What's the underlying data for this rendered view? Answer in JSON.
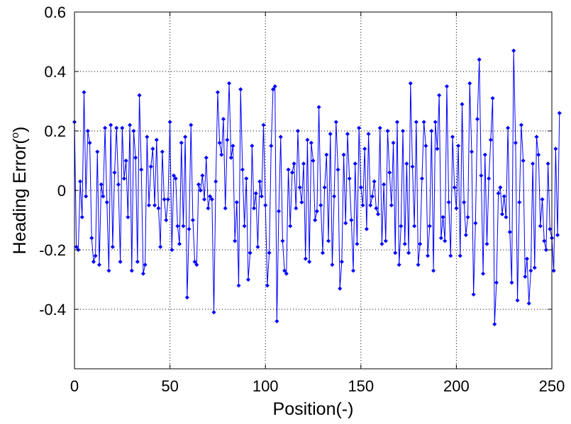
{
  "chart_data": {
    "type": "line",
    "xlabel": "Position(-)",
    "ylabel_text": "Heading Error(",
    "ylabel_sup": "o",
    "ylabel_close": ")",
    "xlim": [
      0,
      250
    ],
    "ylim": [
      -0.6,
      0.6
    ],
    "xticks": [
      0,
      50,
      100,
      150,
      200,
      250
    ],
    "xtick_labels": [
      "0",
      "50",
      "100",
      "150",
      "200",
      "250"
    ],
    "yticks": [
      -0.4,
      -0.2,
      0,
      0.2,
      0.4,
      0.6
    ],
    "ytick_labels": [
      "-0.4",
      "-0.2",
      "0",
      "0.2",
      "0.4",
      "0.6"
    ],
    "grid": true,
    "series": [
      {
        "color": "#0000ff",
        "marker": "diamond",
        "x_start": 0,
        "x_step": 1,
        "values": [
          0.23,
          -0.19,
          -0.2,
          0.03,
          -0.09,
          0.33,
          -0.02,
          0.2,
          0.16,
          -0.16,
          -0.24,
          -0.22,
          0.13,
          -0.25,
          0.02,
          -0.02,
          0.21,
          -0.04,
          -0.27,
          0.22,
          -0.19,
          0.06,
          0.21,
          0.02,
          -0.24,
          0.21,
          0.04,
          0.1,
          -0.09,
          0.22,
          -0.27,
          0.2,
          0.11,
          -0.24,
          0.32,
          0.07,
          -0.28,
          -0.25,
          0.18,
          -0.05,
          0.08,
          0.14,
          -0.05,
          0.17,
          -0.06,
          -0.19,
          0.13,
          -0.03,
          -0.1,
          -0.03,
          0.23,
          -0.2,
          0.05,
          0.04,
          -0.12,
          -0.18,
          0.16,
          -0.12,
          0.18,
          -0.36,
          -0.13,
          0.22,
          -0.1,
          -0.24,
          -0.25,
          0.02,
          0.0,
          0.05,
          -0.03,
          0.11,
          -0.06,
          -0.02,
          -0.03,
          -0.41,
          0.03,
          0.33,
          0.16,
          0.12,
          0.24,
          -0.06,
          0.17,
          0.36,
          0.11,
          0.15,
          -0.17,
          -0.04,
          -0.32,
          0.34,
          0.07,
          -0.12,
          0.04,
          -0.3,
          -0.21,
          0.15,
          -0.06,
          -0.01,
          -0.19,
          0.03,
          -0.02,
          0.22,
          -0.05,
          -0.32,
          -0.21,
          0.15,
          0.34,
          0.35,
          -0.44,
          -0.07,
          0.18,
          -0.17,
          -0.27,
          -0.28,
          0.07,
          -0.12,
          0.06,
          0.09,
          -0.06,
          0.2,
          0.01,
          -0.04,
          0.09,
          -0.23,
          0.17,
          -0.24,
          0.16,
          0.1,
          -0.1,
          -0.07,
          0.28,
          -0.05,
          -0.21,
          0.01,
          0.12,
          -0.17,
          0.19,
          -0.25,
          -0.02,
          0.23,
          0.07,
          -0.33,
          -0.24,
          0.12,
          -0.11,
          0.19,
          0.04,
          -0.1,
          -0.27,
          0.09,
          -0.18,
          0.21,
          0.01,
          -0.05,
          0.14,
          -0.13,
          0.19,
          -0.05,
          -0.02,
          0.03,
          -0.06,
          -0.08,
          0.21,
          -0.18,
          0.02,
          -0.17,
          0.2,
          0.06,
          -0.05,
          0.16,
          -0.21,
          0.23,
          -0.25,
          -0.12,
          0.2,
          -0.18,
          0.09,
          -0.21,
          0.36,
          0.08,
          -0.12,
          0.23,
          -0.25,
          -0.18,
          0.04,
          0.23,
          0.15,
          -0.22,
          -0.12,
          0.2,
          -0.27,
          0.23,
          0.14,
          0.32,
          -0.16,
          -0.09,
          -0.17,
          0.35,
          -0.04,
          -0.22,
          0.18,
          0.01,
          -0.06,
          0.15,
          -0.22,
          0.29,
          -0.04,
          -0.15,
          -0.09,
          0.36,
          0.13,
          -0.35,
          -0.11,
          0.24,
          0.44,
          0.05,
          -0.28,
          0.12,
          -0.18,
          0.04,
          0.17,
          0.31,
          -0.45,
          -0.31,
          -0.01,
          0.01,
          -0.08,
          -0.02,
          -0.09,
          0.21,
          -0.14,
          -0.31,
          0.47,
          0.16,
          -0.37,
          -0.04,
          0.22,
          0.1,
          -0.29,
          -0.23,
          -0.38,
          -0.27,
          0.09,
          -0.26,
          0.18,
          0.12,
          -0.12,
          -0.03,
          -0.17,
          -0.2,
          0.09,
          -0.13,
          -0.16,
          -0.27,
          0.14,
          -0.15,
          0.26
        ]
      }
    ]
  }
}
